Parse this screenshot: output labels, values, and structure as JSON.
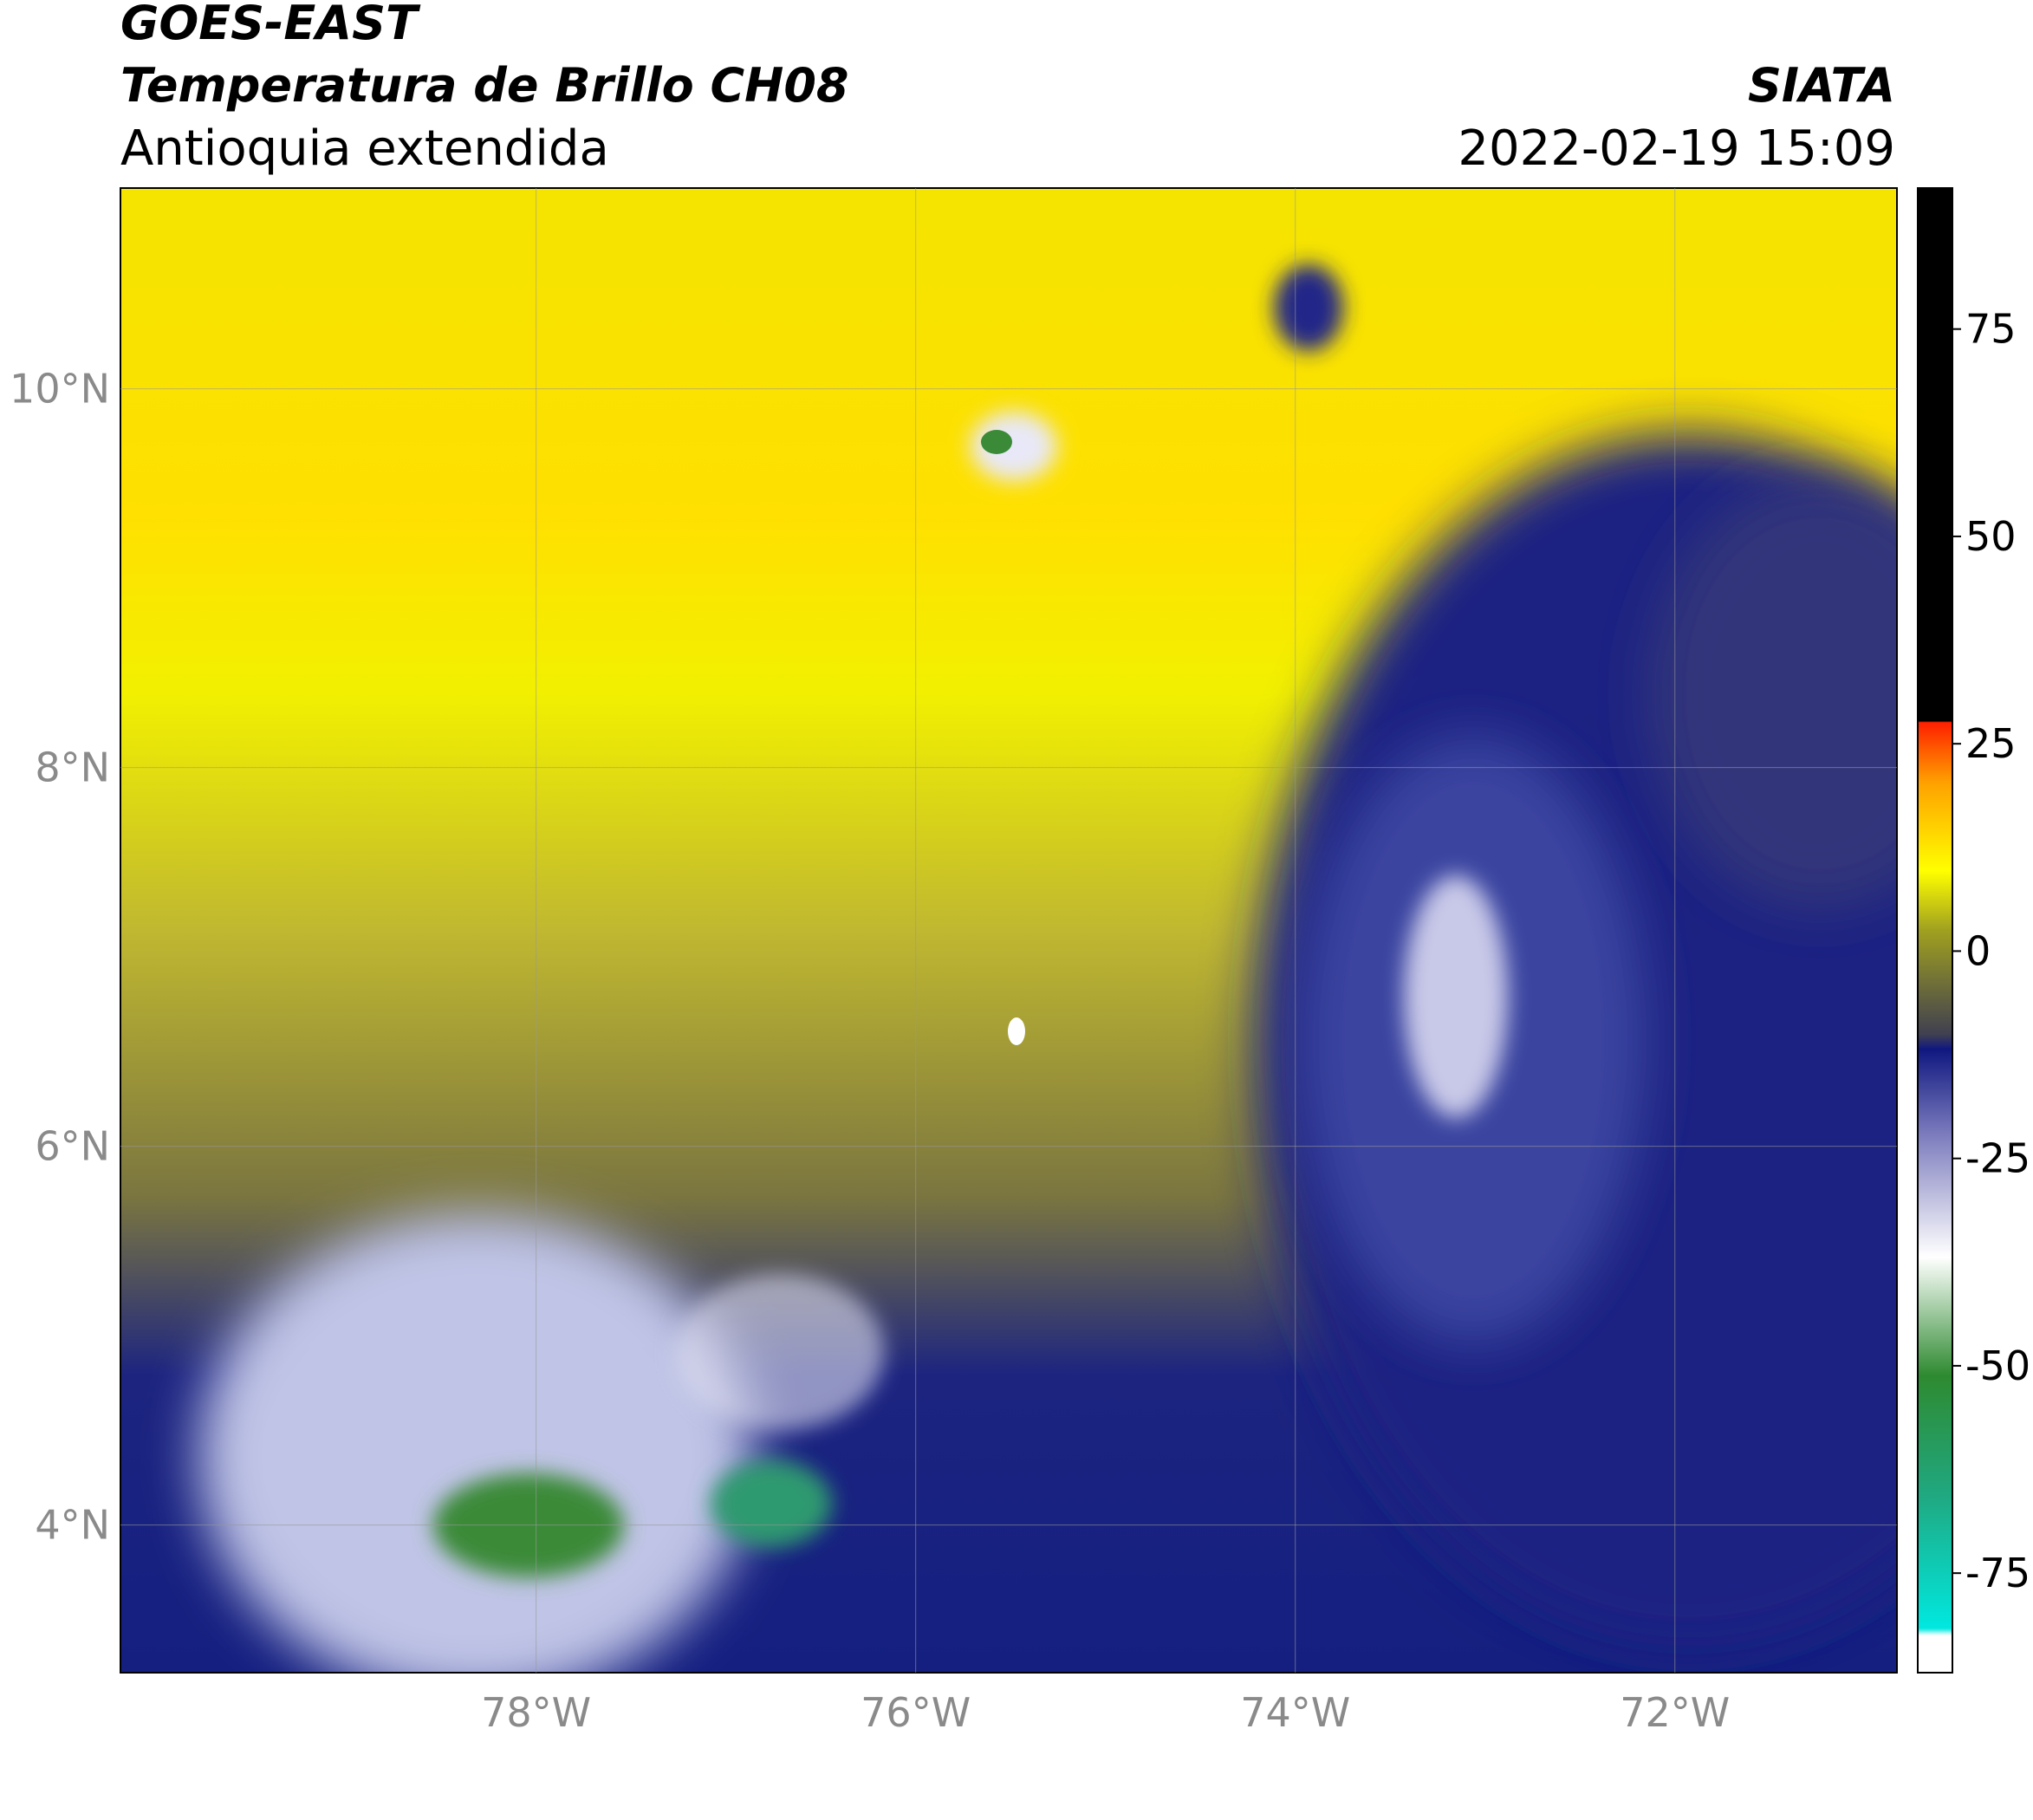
{
  "chart_data": {
    "type": "map",
    "title": "GOES-EAST",
    "subtitle": "Temperatura de Brillo CH08",
    "region": "Antioquia extendida",
    "source": "SIATA",
    "date": "2022-02-19 15:09",
    "xlim": [
      -80.19,
      -70.83
    ],
    "ylim": [
      3.22,
      11.06
    ],
    "xticks": [
      {
        "value": -78,
        "label": "78°W"
      },
      {
        "value": -76,
        "label": "76°W"
      },
      {
        "value": -74,
        "label": "74°W"
      },
      {
        "value": -72,
        "label": "72°W"
      }
    ],
    "yticks": [
      {
        "value": 4,
        "label": "4°N"
      },
      {
        "value": 6,
        "label": "6°N"
      },
      {
        "value": 8,
        "label": "8°N"
      },
      {
        "value": 10,
        "label": "10°N"
      }
    ],
    "grid": true,
    "colorbar": {
      "lim": [
        -87,
        92
      ],
      "ticks": [
        -75,
        -50,
        -25,
        0,
        25,
        50,
        75
      ]
    }
  }
}
